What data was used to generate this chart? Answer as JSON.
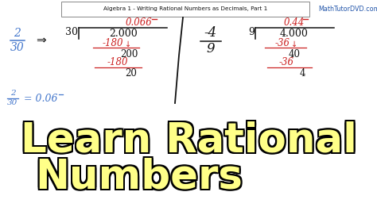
{
  "bg_color": "#ffffff",
  "title_box_text": "Algebra 1 - Writing Rational Numbers as Decimals, Part 1",
  "watermark_text": "MathTutorDVD.com",
  "main_line1": "Learn Rational",
  "main_line2": "Numbers",
  "main_text_color": "#ffff88",
  "main_text_outline": "#000000",
  "math_color": "#cc2222",
  "blue_color": "#4477cc",
  "black_color": "#111111",
  "gray_color": "#555555",
  "fig_width": 4.74,
  "fig_height": 2.66,
  "dpi": 100
}
